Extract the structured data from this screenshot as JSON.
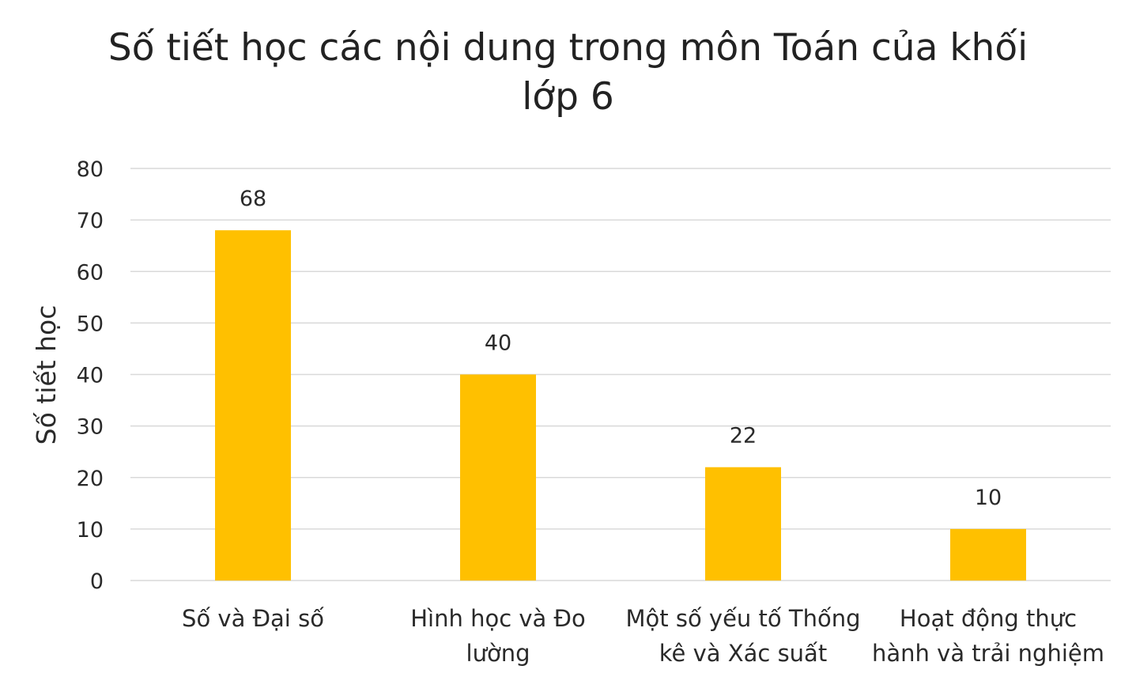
{
  "chart_data": {
    "type": "bar",
    "title_lines": [
      "Số tiết học các nội dung trong môn Toán của khối",
      "lớp 6"
    ],
    "ylabel": "Số tiết học",
    "xlabel": "",
    "ylim": [
      0,
      80
    ],
    "yticks": [
      0,
      10,
      20,
      30,
      40,
      50,
      60,
      70,
      80
    ],
    "categories": [
      "Số và Đại số",
      "Hình học và Đo lường",
      "Một số yếu tố Thống kê và Xác suất",
      "Hoạt động thực hành và trải nghiệm"
    ],
    "category_lines": [
      [
        "Số và Đại số"
      ],
      [
        "Hình học và Đo",
        "lường"
      ],
      [
        "Một số yếu tố Thống",
        "kê và Xác suất"
      ],
      [
        "Hoạt động thực",
        "hành và trải nghiệm"
      ]
    ],
    "values": [
      68,
      40,
      22,
      10
    ],
    "data_labels": [
      "68",
      "40",
      "22",
      "10"
    ],
    "grid": true,
    "legend": "none",
    "colors": {
      "bar": "#FFC000",
      "grid": "#d9d9d9",
      "text": "#2a2a2a"
    }
  }
}
